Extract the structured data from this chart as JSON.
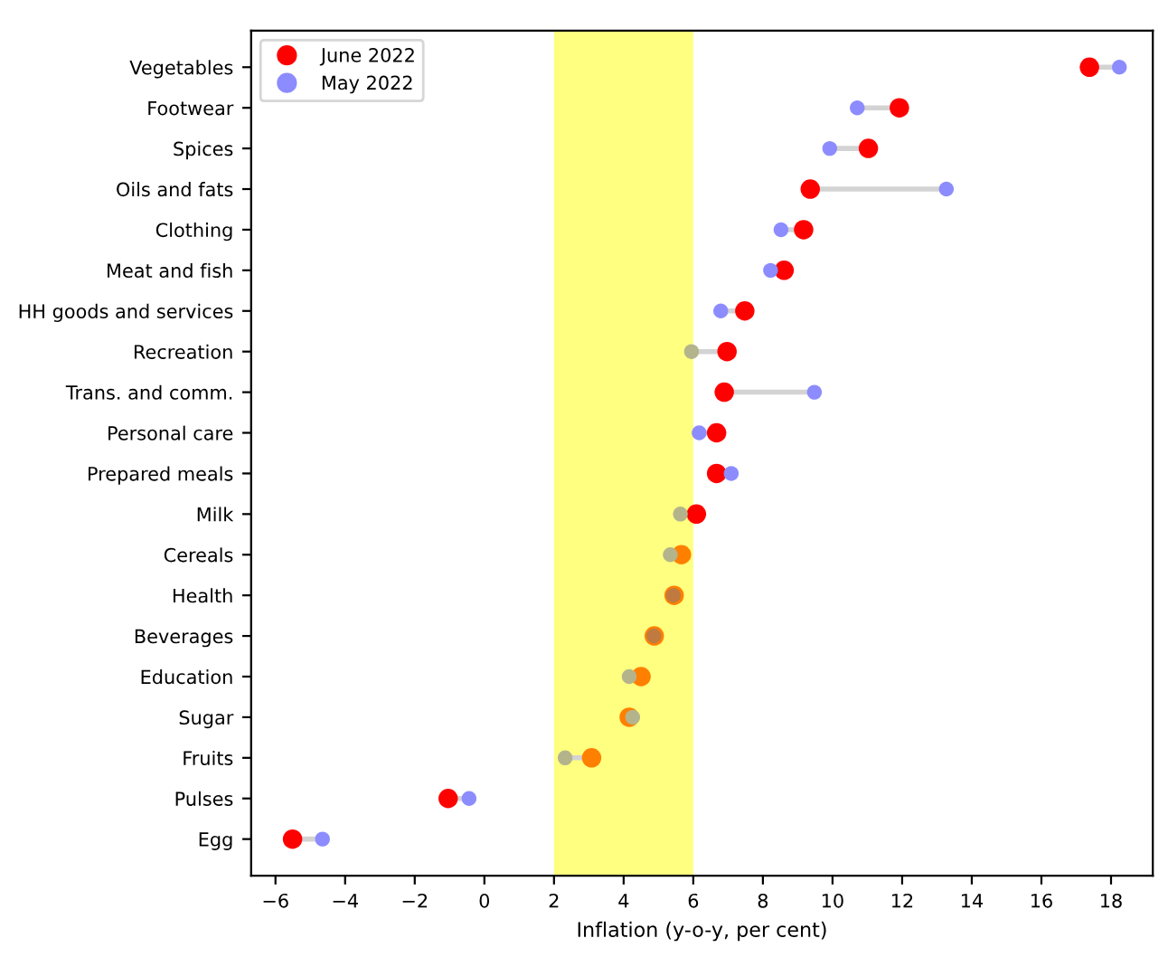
{
  "chart_data": {
    "type": "scatter",
    "orientation": "horizontal",
    "xlabel": "Inflation (y-o-y, per cent)",
    "categories": [
      "Vegetables",
      "Footwear",
      "Spices",
      "Oils and fats",
      "Clothing",
      "Meat and fish",
      "HH goods and services",
      "Recreation",
      "Trans. and comm.",
      "Personal care",
      "Prepared meals",
      "Milk",
      "Cereals",
      "Health",
      "Beverages",
      "Education",
      "Sugar",
      "Fruits",
      "Pulses",
      "Egg"
    ],
    "series": [
      {
        "name": "June 2022",
        "color": "#ff0000",
        "values": [
          17.38,
          11.92,
          11.03,
          9.36,
          9.17,
          8.61,
          7.48,
          6.97,
          6.89,
          6.67,
          6.67,
          6.09,
          5.66,
          5.45,
          4.88,
          4.5,
          4.16,
          3.08,
          -1.04,
          -5.51
        ],
        "colors": [
          "#ff0000",
          "#ff0000",
          "#ff0000",
          "#ff0000",
          "#ff0000",
          "#ff0000",
          "#ff0000",
          "#ff0000",
          "#ff0000",
          "#ff0000",
          "#ff0000",
          "#ff0000",
          "#ff8000",
          "#ff8000",
          "#ff8000",
          "#ff8000",
          "#ff8000",
          "#ff8000",
          "#ff0000",
          "#ff0000"
        ]
      },
      {
        "name": "May 2022",
        "color": "#8c8cff",
        "values": [
          18.24,
          10.71,
          9.92,
          13.27,
          8.52,
          8.22,
          6.79,
          5.95,
          9.48,
          6.17,
          7.09,
          5.63,
          5.34,
          5.43,
          4.87,
          4.16,
          4.26,
          2.32,
          -0.44,
          -4.65
        ],
        "colors": [
          "#8c8cff",
          "#8c8cff",
          "#8c8cff",
          "#8c8cff",
          "#8c8cff",
          "#8c8cff",
          "#8c8cff",
          "#b4b48c",
          "#8c8cff",
          "#8c8cff",
          "#8c8cff",
          "#b4b48c",
          "#b4b48c",
          "#c07a40",
          "#c07a40",
          "#b4b48c",
          "#b4b48c",
          "#b4b48c",
          "#8c8cff",
          "#8c8cff"
        ]
      }
    ],
    "xlim": [
      -6.7,
      19.2
    ],
    "xticks": [
      {
        "value": -6,
        "label": "−6"
      },
      {
        "value": -4,
        "label": "−4"
      },
      {
        "value": -2,
        "label": "−2"
      },
      0,
      2,
      4,
      6,
      8,
      10,
      12,
      14,
      16,
      18
    ],
    "bands": [
      {
        "axis": "x",
        "from": 2,
        "to": 6,
        "color": "#ffff80"
      }
    ],
    "legend": "top left",
    "marker": "circle",
    "grid": false
  }
}
